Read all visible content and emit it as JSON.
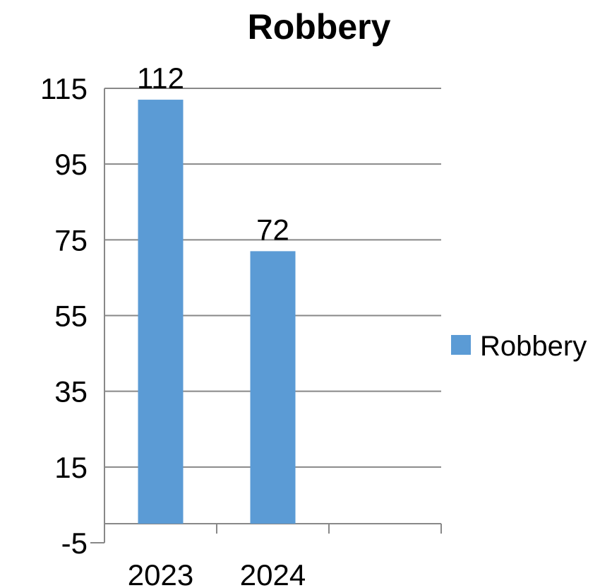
{
  "chart_data": {
    "type": "bar",
    "title": "Robbery",
    "categories": [
      "2023",
      "2024"
    ],
    "series": [
      {
        "name": "Robbery",
        "values": [
          112,
          72
        ],
        "color": "#5b9bd5"
      }
    ],
    "y_ticks": [
      "115",
      "95",
      "75",
      "55",
      "35",
      "15",
      "-5"
    ],
    "ylim": [
      -5,
      115
    ],
    "grid": true,
    "legend_position": "right",
    "data_labels": [
      "112",
      "72"
    ]
  }
}
